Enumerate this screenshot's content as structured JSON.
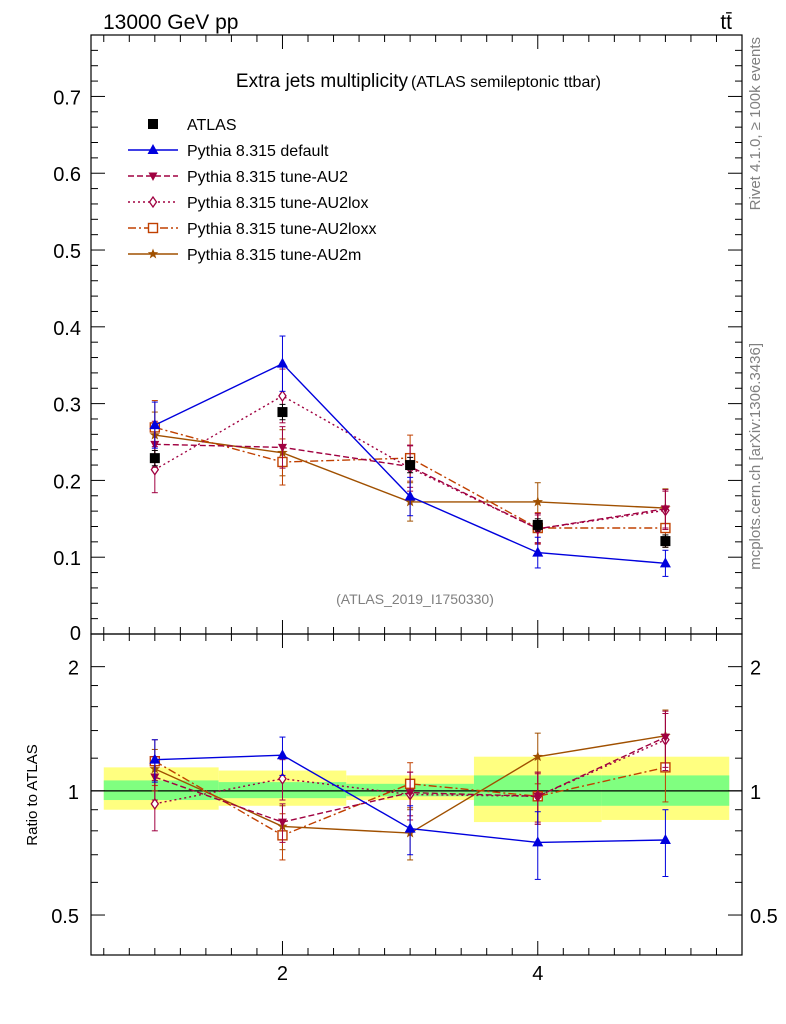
{
  "header": {
    "energy_label": "13000 GeV pp",
    "process_label": "tt̄",
    "side_label_top": "Rivet 4.1.0, ≥ 100k events",
    "side_label_bottom": "mcplots.cern.ch [arXiv:1306.3436]"
  },
  "chart_data": [
    {
      "type": "line",
      "panel": "main",
      "title": "Extra jets multiplicity",
      "subtitle": "(ATLAS semileptonic ttbar)",
      "watermark": "(ATLAS_2019_I1750330)",
      "xlabel": "",
      "ylabel": "",
      "xlim": [
        0.5,
        5.6
      ],
      "ylim": [
        0,
        0.78
      ],
      "x": [
        1,
        2,
        3,
        4,
        5
      ],
      "x_ticks": [
        2,
        4
      ],
      "y_ticks": [
        0,
        0.1,
        0.2,
        0.3,
        0.4,
        0.5,
        0.6,
        0.7
      ],
      "y_tick_labels": [
        "0",
        "0.1",
        "0.2",
        "0.3",
        "0.4",
        "0.5",
        "0.6",
        "0.7"
      ],
      "legend_position": "top-left",
      "series": [
        {
          "name": "ATLAS",
          "color": "#000000",
          "marker": "square",
          "line": "none",
          "values": [
            0.229,
            0.289,
            0.22,
            0.142,
            0.121
          ],
          "errors": [
            0.01,
            0.01,
            0.01,
            0.008,
            0.008
          ]
        },
        {
          "name": "Pythia 8.315 default",
          "color": "#0000dd",
          "marker": "triangle-up",
          "line": "solid",
          "values": [
            0.272,
            0.352,
            0.179,
            0.106,
            0.092
          ],
          "errors": [
            0.03,
            0.036,
            0.025,
            0.02,
            0.017
          ]
        },
        {
          "name": "Pythia 8.315 tune-AU2",
          "color": "#a00040",
          "marker": "triangle-down",
          "line": "dashed",
          "values": [
            0.247,
            0.243,
            0.218,
            0.137,
            0.163
          ],
          "errors": [
            0.03,
            0.027,
            0.027,
            0.018,
            0.025
          ]
        },
        {
          "name": "Pythia 8.315 tune-AU2lox",
          "color": "#a00040",
          "marker": "diamond-open",
          "line": "dotted",
          "values": [
            0.214,
            0.31,
            0.216,
            0.137,
            0.161
          ],
          "errors": [
            0.03,
            0.035,
            0.03,
            0.02,
            0.025
          ]
        },
        {
          "name": "Pythia 8.315 tune-AU2loxx",
          "color": "#c04000",
          "marker": "square-open",
          "line": "dashdot",
          "values": [
            0.269,
            0.224,
            0.229,
            0.138,
            0.138
          ],
          "errors": [
            0.035,
            0.03,
            0.03,
            0.02,
            0.025
          ]
        },
        {
          "name": "Pythia 8.315 tune-AU2m",
          "color": "#a05000",
          "marker": "star",
          "line": "solid",
          "values": [
            0.259,
            0.236,
            0.172,
            0.172,
            0.164
          ],
          "errors": [
            0.03,
            0.03,
            0.025,
            0.025,
            0.025
          ]
        }
      ]
    },
    {
      "type": "line",
      "panel": "ratio",
      "title": "",
      "xlabel": "",
      "ylabel": "Ratio to ATLAS",
      "xlim": [
        0.5,
        5.6
      ],
      "ylim": [
        0.4,
        2.4
      ],
      "y_scale": "log",
      "x_ticks": [
        2,
        4
      ],
      "x_tick_labels": [
        "2",
        "4"
      ],
      "y_ticks": [
        0.5,
        1,
        2
      ],
      "y_tick_labels": [
        "0.5",
        "1",
        "2"
      ],
      "x": [
        1,
        2,
        3,
        4,
        5
      ],
      "bin_edges": [
        0.6,
        1.5,
        2.5,
        3.5,
        4.5,
        5.5
      ],
      "band_inner_lo": [
        0.95,
        0.96,
        0.97,
        0.92,
        0.92
      ],
      "band_inner_hi": [
        1.06,
        1.05,
        1.04,
        1.09,
        1.09
      ],
      "band_outer_lo": [
        0.9,
        0.92,
        0.95,
        0.84,
        0.85
      ],
      "band_outer_hi": [
        1.14,
        1.12,
        1.09,
        1.21,
        1.21
      ],
      "band_colors": {
        "inner": "#80ff80",
        "outer": "#ffff80"
      },
      "series": [
        {
          "name": "Pythia 8.315 default",
          "color": "#0000dd",
          "marker": "triangle-up",
          "line": "solid",
          "values": [
            1.19,
            1.22,
            0.81,
            0.75,
            0.76
          ],
          "errors": [
            0.14,
            0.13,
            0.11,
            0.14,
            0.14
          ]
        },
        {
          "name": "Pythia 8.315 tune-AU2",
          "color": "#a00040",
          "marker": "triangle-down",
          "line": "dashed",
          "values": [
            1.08,
            0.84,
            0.99,
            0.97,
            1.35
          ],
          "errors": [
            0.13,
            0.09,
            0.12,
            0.13,
            0.21
          ]
        },
        {
          "name": "Pythia 8.315 tune-AU2lox",
          "color": "#a00040",
          "marker": "diamond-open",
          "line": "dotted",
          "values": [
            0.93,
            1.07,
            0.98,
            0.97,
            1.33
          ],
          "errors": [
            0.13,
            0.12,
            0.13,
            0.14,
            0.21
          ]
        },
        {
          "name": "Pythia 8.315 tune-AU2loxx",
          "color": "#c04000",
          "marker": "square-open",
          "line": "dashdot",
          "values": [
            1.18,
            0.78,
            1.04,
            0.97,
            1.14
          ],
          "errors": [
            0.15,
            0.1,
            0.13,
            0.14,
            0.2
          ]
        },
        {
          "name": "Pythia 8.315 tune-AU2m",
          "color": "#a05000",
          "marker": "star",
          "line": "solid",
          "values": [
            1.13,
            0.82,
            0.79,
            1.21,
            1.36
          ],
          "errors": [
            0.13,
            0.1,
            0.11,
            0.17,
            0.21
          ]
        }
      ]
    }
  ]
}
